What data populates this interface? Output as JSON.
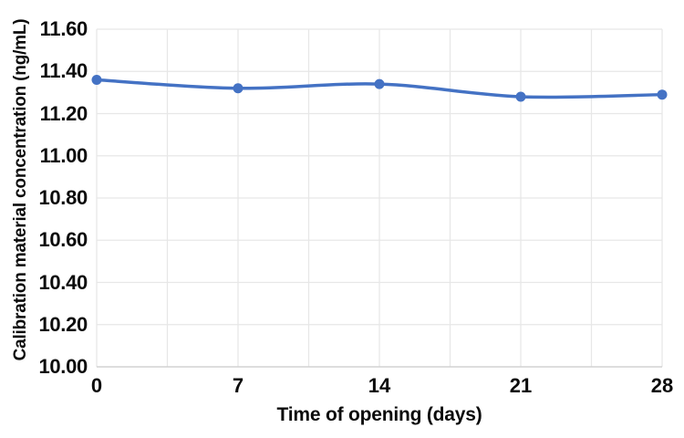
{
  "chart_data": {
    "type": "line",
    "title": "",
    "xlabel": "Time of opening (days)",
    "ylabel": "Calibration material concentration (ng/mL)",
    "x": [
      0,
      7,
      14,
      21,
      28
    ],
    "series": [
      {
        "name": "Calibration material concentration (ng/mL)",
        "values": [
          11.36,
          11.32,
          11.34,
          11.28,
          11.29
        ],
        "color": "#4472C4",
        "marker": "circle",
        "smoothed": true
      }
    ],
    "xlim": [
      0,
      28
    ],
    "ylim": [
      10.0,
      11.6
    ],
    "x_ticks": {
      "values": [
        0,
        7,
        14,
        21,
        28
      ],
      "labels": [
        "0",
        "7",
        "14",
        "21",
        "28"
      ]
    },
    "y_ticks": {
      "values": [
        10.0,
        10.2,
        10.4,
        10.6,
        10.8,
        11.0,
        11.2,
        11.4,
        11.6
      ],
      "labels": [
        "10.00",
        "10.20",
        "10.40",
        "10.60",
        "10.80",
        "11.00",
        "11.20",
        "11.40",
        "11.60"
      ]
    },
    "gridlines": {
      "x_interval": 3.5,
      "y_interval": 0.2,
      "visible": true
    },
    "legend": {
      "visible": false
    },
    "colors": {
      "series": "#4472C4",
      "gridline": "#E7E7E7",
      "axis_line": "#D2D2D2",
      "text": "#0B0B0B",
      "background": "#FFFFFF"
    }
  }
}
